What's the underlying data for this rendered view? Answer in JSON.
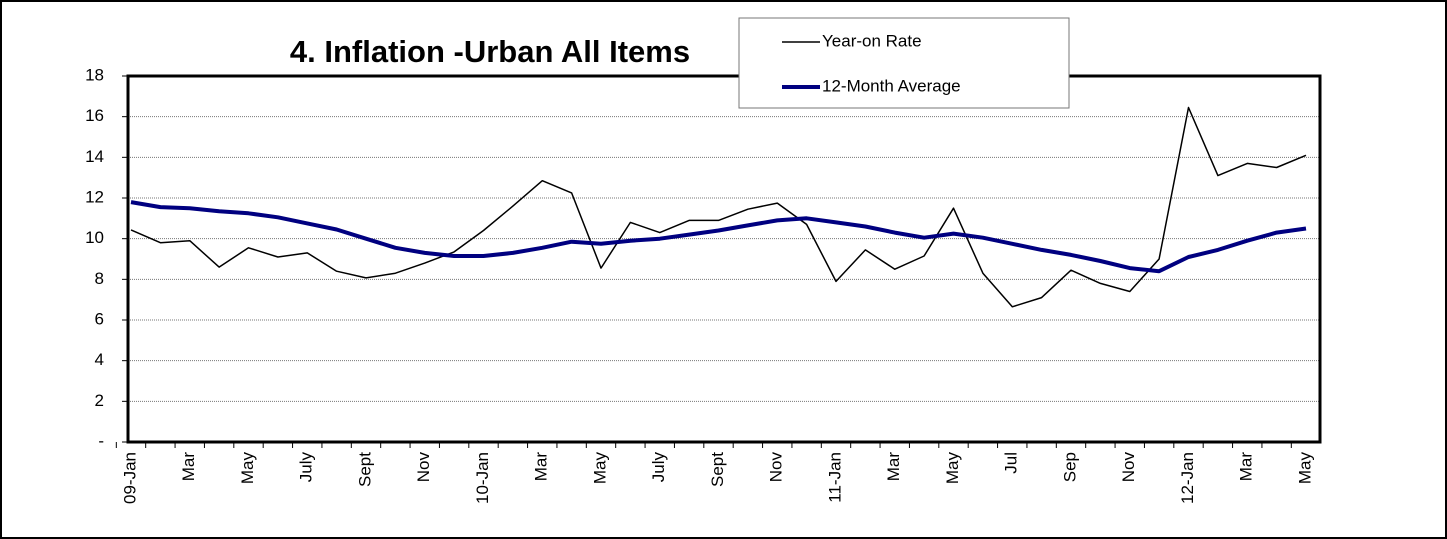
{
  "chart_data": {
    "type": "line",
    "title": "4. Inflation -Urban All Items",
    "categories": [
      "09-Jan",
      null,
      "Mar",
      null,
      "May",
      null,
      "July",
      null,
      "Sept",
      null,
      "Nov",
      null,
      "10-Jan",
      null,
      "Mar",
      null,
      "May",
      null,
      "July",
      null,
      "Sept",
      null,
      "Nov",
      null,
      "11-Jan",
      null,
      "Mar",
      null,
      "May",
      null,
      "Jul",
      null,
      "Sep",
      null,
      "Nov",
      null,
      "12-Jan",
      null,
      "Mar",
      null,
      "May"
    ],
    "series": [
      {
        "name": "Year-on Rate",
        "color": "#000000",
        "width": 1.5,
        "values": [
          10.43,
          9.8,
          9.9,
          8.6,
          9.55,
          9.1,
          9.3,
          8.4,
          8.07,
          8.3,
          8.8,
          9.35,
          10.4,
          11.6,
          12.85,
          12.25,
          8.55,
          10.8,
          10.3,
          10.9,
          10.9,
          11.45,
          11.75,
          10.7,
          7.9,
          9.45,
          8.5,
          9.15,
          11.5,
          8.3,
          6.65,
          7.1,
          8.45,
          7.8,
          7.4,
          9.0,
          16.45,
          13.1,
          13.7,
          13.5,
          14.1
        ]
      },
      {
        "name": "12-Month Average",
        "color": "#000080",
        "width": 4,
        "values": [
          11.8,
          11.55,
          11.5,
          11.35,
          11.25,
          11.05,
          10.75,
          10.45,
          10.0,
          9.55,
          9.3,
          9.15,
          9.15,
          9.3,
          9.55,
          9.85,
          9.75,
          9.9,
          10.0,
          10.2,
          10.4,
          10.65,
          10.9,
          11.0,
          10.8,
          10.6,
          10.3,
          10.05,
          10.25,
          10.05,
          9.75,
          9.45,
          9.2,
          8.9,
          8.55,
          8.4,
          9.1,
          9.45,
          9.9,
          10.3,
          10.5
        ]
      }
    ],
    "ylim": [
      0,
      18
    ],
    "yticks": [
      {
        "value": 0,
        "label": "-"
      },
      2,
      4,
      6,
      8,
      10,
      12,
      14,
      16,
      18
    ],
    "grid": true
  }
}
